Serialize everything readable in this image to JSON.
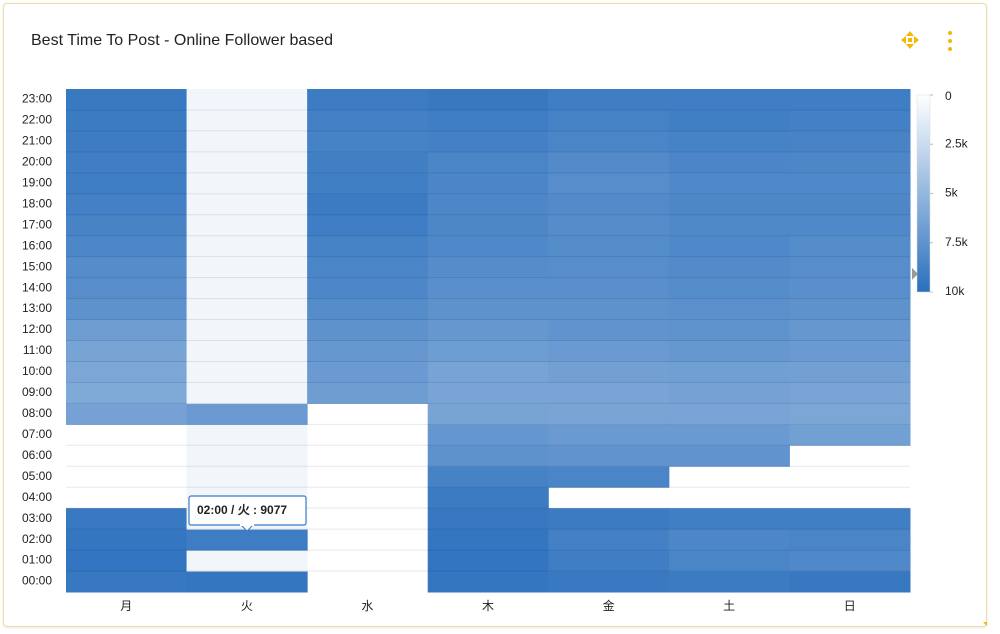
{
  "chart_data": {
    "type": "heatmap",
    "title": "Best Time To Post - Online Follower based",
    "x": [
      "月",
      "火",
      "水",
      "木",
      "金",
      "土",
      "日"
    ],
    "y": [
      "00:00",
      "01:00",
      "02:00",
      "03:00",
      "04:00",
      "05:00",
      "06:00",
      "07:00",
      "08:00",
      "09:00",
      "10:00",
      "11:00",
      "12:00",
      "13:00",
      "14:00",
      "15:00",
      "16:00",
      "17:00",
      "18:00",
      "19:00",
      "20:00",
      "21:00",
      "22:00",
      "23:00"
    ],
    "values": [
      [
        9400,
        9600,
        9500,
        9300,
        null,
        null,
        null,
        null,
        6500,
        6000,
        6200,
        6400,
        6800,
        7600,
        7900,
        8000,
        8300,
        8600,
        8800,
        9000,
        9000,
        9100,
        9200,
        9300
      ],
      [
        9500,
        600,
        9077,
        600,
        600,
        600,
        600,
        600,
        7000,
        600,
        600,
        600,
        600,
        600,
        600,
        600,
        600,
        600,
        600,
        600,
        600,
        600,
        600,
        600
      ],
      [
        null,
        null,
        null,
        null,
        null,
        null,
        null,
        null,
        null,
        6800,
        7000,
        7200,
        7600,
        8000,
        8300,
        8500,
        8700,
        9000,
        9200,
        8900,
        8900,
        8700,
        8800,
        9100
      ],
      [
        9500,
        9600,
        9500,
        9400,
        9200,
        8700,
        7600,
        7300,
        6400,
        6300,
        6400,
        6800,
        7200,
        7600,
        7800,
        8000,
        8200,
        8300,
        8300,
        8400,
        8500,
        8800,
        9000,
        9400
      ],
      [
        9300,
        9000,
        8800,
        9200,
        null,
        8500,
        7400,
        7000,
        6300,
        6300,
        6600,
        7000,
        7400,
        7600,
        7800,
        7900,
        8000,
        8000,
        8100,
        7900,
        8100,
        8500,
        8700,
        9000
      ],
      [
        9200,
        8500,
        8300,
        8900,
        null,
        null,
        7400,
        7000,
        6300,
        6500,
        6700,
        7200,
        7500,
        7700,
        8000,
        8100,
        8200,
        8200,
        8300,
        8200,
        8400,
        8700,
        8900,
        9000
      ],
      [
        9400,
        8200,
        8500,
        8900,
        null,
        null,
        null,
        6600,
        6200,
        6300,
        6600,
        7000,
        7200,
        7600,
        7800,
        7900,
        8000,
        8200,
        8300,
        8200,
        8300,
        8600,
        8800,
        9000
      ]
    ],
    "colors": [
      "#ffffff",
      "#2a6fbd"
    ],
    "clim": [
      0,
      10000
    ],
    "cticks": [
      0,
      {
        "value": 2500,
        "label": "2.5k"
      },
      {
        "value": 5000,
        "label": "5k"
      },
      {
        "value": 7500,
        "label": "7.5k"
      },
      {
        "value": 10000,
        "label": "10k"
      }
    ],
    "tooltip": "02:00 / 火 : 9077"
  }
}
